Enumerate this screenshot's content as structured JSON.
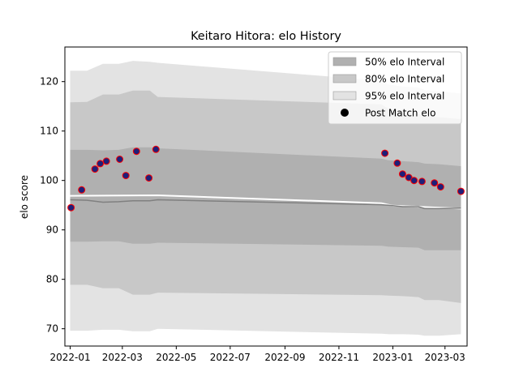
{
  "chart_data": {
    "type": "area",
    "title": "Keitaro Hitora: elo History",
    "xlabel": "",
    "ylabel": "elo score",
    "xlim": [
      "2021-12-26",
      "2023-03-26"
    ],
    "ylim": [
      66.5,
      127.0
    ],
    "x_ticks": [
      "2022-01",
      "2022-03",
      "2022-05",
      "2022-07",
      "2022-09",
      "2022-11",
      "2023-01",
      "2023-03"
    ],
    "y_ticks": [
      70,
      80,
      90,
      100,
      110,
      120
    ],
    "grid": false,
    "legend_position": "top-right",
    "colors": {
      "band50": "#b0b0b0",
      "band80": "#c8c8c8",
      "band95": "#e3e3e3",
      "mean_line": "#808080",
      "prior_line": "#ffffff",
      "marker_fill": "#1f1f78",
      "marker_edge": "#ff0000",
      "legend_marker": "#000000"
    },
    "legend": [
      {
        "label": "50% elo Interval",
        "kind": "band50"
      },
      {
        "label": "80% elo Interval",
        "kind": "band80"
      },
      {
        "label": "95% elo Interval",
        "kind": "band95"
      },
      {
        "label": "Post Match elo",
        "kind": "marker"
      }
    ],
    "mean_line": [
      {
        "x": "2022-01-01",
        "y": 96.1
      },
      {
        "x": "2022-01-20",
        "y": 96.0
      },
      {
        "x": "2022-02-07",
        "y": 95.6
      },
      {
        "x": "2022-02-25",
        "y": 95.7
      },
      {
        "x": "2022-03-13",
        "y": 95.9
      },
      {
        "x": "2022-04-01",
        "y": 95.9
      },
      {
        "x": "2022-04-10",
        "y": 96.1
      },
      {
        "x": "2022-12-19",
        "y": 95.1
      },
      {
        "x": "2022-12-27",
        "y": 95.0
      },
      {
        "x": "2023-01-12",
        "y": 94.7
      },
      {
        "x": "2023-01-30",
        "y": 94.7
      },
      {
        "x": "2023-02-06",
        "y": 94.3
      },
      {
        "x": "2023-02-22",
        "y": 94.3
      },
      {
        "x": "2023-03-19",
        "y": 94.4
      }
    ],
    "prior_line": [
      {
        "x": "2022-01-01",
        "y": 96.9
      },
      {
        "x": "2022-04-10",
        "y": 97.0
      },
      {
        "x": "2022-12-19",
        "y": 95.4
      },
      {
        "x": "2023-01-01",
        "y": 94.9
      },
      {
        "x": "2023-03-19",
        "y": 94.3
      }
    ],
    "bands": {
      "x": [
        "2022-01-01",
        "2022-01-20",
        "2022-02-07",
        "2022-02-25",
        "2022-03-13",
        "2022-04-01",
        "2022-04-10",
        "2022-12-19",
        "2022-12-27",
        "2023-01-12",
        "2023-01-30",
        "2023-02-06",
        "2023-02-22",
        "2023-03-19"
      ],
      "p95_hi": [
        122.2,
        122.2,
        123.6,
        123.6,
        124.2,
        124.0,
        123.8,
        120.2,
        119.4,
        119.0,
        118.8,
        118.3,
        118.0,
        117.6
      ],
      "p80_hi": [
        115.8,
        115.9,
        117.4,
        117.4,
        118.2,
        118.2,
        116.9,
        115.4,
        114.5,
        113.7,
        113.5,
        113.0,
        112.8,
        112.4
      ],
      "p50_hi": [
        106.2,
        106.2,
        106.1,
        106.2,
        106.7,
        106.7,
        106.5,
        104.4,
        104.1,
        103.9,
        103.7,
        103.4,
        103.3,
        102.9
      ],
      "p50_lo": [
        87.6,
        87.6,
        87.7,
        87.7,
        87.2,
        87.2,
        87.4,
        86.8,
        86.6,
        86.5,
        86.4,
        85.9,
        85.9,
        85.9
      ],
      "p80_lo": [
        78.9,
        78.9,
        78.2,
        78.2,
        76.9,
        76.9,
        77.3,
        76.8,
        76.7,
        76.6,
        76.4,
        75.8,
        75.8,
        75.2
      ],
      "p95_lo": [
        69.6,
        69.6,
        69.8,
        69.8,
        69.5,
        69.5,
        70.0,
        69.0,
        68.9,
        68.9,
        68.8,
        68.6,
        68.6,
        68.9
      ]
    },
    "points": [
      {
        "x": "2022-01-02",
        "y": 94.5
      },
      {
        "x": "2022-01-14",
        "y": 98.1
      },
      {
        "x": "2022-01-29",
        "y": 102.3
      },
      {
        "x": "2022-02-04",
        "y": 103.4
      },
      {
        "x": "2022-02-11",
        "y": 103.9
      },
      {
        "x": "2022-02-26",
        "y": 104.3
      },
      {
        "x": "2022-03-05",
        "y": 101.0
      },
      {
        "x": "2022-03-17",
        "y": 105.9
      },
      {
        "x": "2022-03-31",
        "y": 100.5
      },
      {
        "x": "2022-04-08",
        "y": 106.3
      },
      {
        "x": "2022-12-23",
        "y": 105.5
      },
      {
        "x": "2023-01-06",
        "y": 103.5
      },
      {
        "x": "2023-01-12",
        "y": 101.3
      },
      {
        "x": "2023-01-19",
        "y": 100.6
      },
      {
        "x": "2023-01-25",
        "y": 100.0
      },
      {
        "x": "2023-02-03",
        "y": 99.8
      },
      {
        "x": "2023-02-17",
        "y": 99.5
      },
      {
        "x": "2023-02-24",
        "y": 98.7
      },
      {
        "x": "2023-03-19",
        "y": 97.8
      }
    ]
  }
}
